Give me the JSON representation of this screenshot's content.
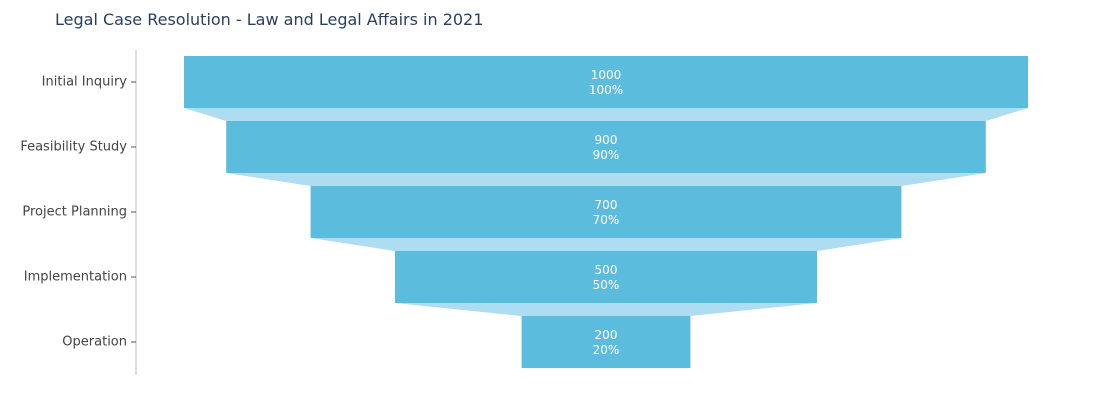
{
  "chart_data": {
    "type": "funnel",
    "title": "Legal Case Resolution - Law and Legal Affairs in 2021",
    "categories": [
      "Initial Inquiry",
      "Feasibility Study",
      "Project Planning",
      "Implementation",
      "Operation"
    ],
    "values": [
      1000,
      900,
      700,
      500,
      200
    ],
    "percent_labels": [
      "100%",
      "90%",
      "70%",
      "50%",
      "20%"
    ],
    "colors": {
      "bar": "#5bbcde",
      "connector": "#aedcf0",
      "axis": "#c8c8c8"
    }
  }
}
